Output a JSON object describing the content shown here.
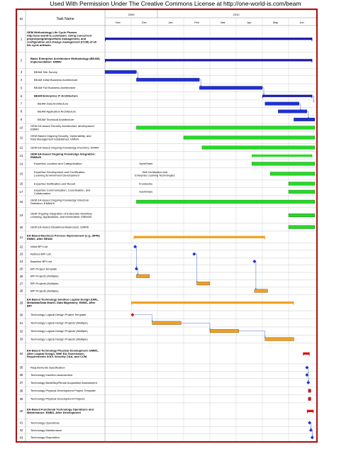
{
  "header_note": "Used With Permission Under The Creative Commons License at http://one-world-is.com/beam",
  "table": {
    "id_header": "ID",
    "task_header": "Task Name",
    "years": [
      {
        "label": "2009",
        "start": 0,
        "span": 2
      },
      {
        "label": "2010",
        "start": 2,
        "span": 6
      }
    ],
    "months": [
      "Nov",
      "Dec",
      "Jan",
      "Feb",
      "Mar",
      "Apr",
      "May",
      "Jun"
    ]
  },
  "colors": {
    "summary": "#1a1aa8",
    "blue": "#1f2fd8",
    "green": "#22dd22",
    "orange": "#f0a020",
    "red": "#e01010",
    "border": "#a11111",
    "grid": "#c8c8c8",
    "link": "#2244cc"
  },
  "rows": [
    {
      "id": "1",
      "name": "GEM Methodology Life Cycle Phases http://one-world-is.com/beam. Using concurrent project/program/portfolio management, and configuration and change management (CCM) of all life cycle artifacts.",
      "bold": true,
      "indent": 0,
      "h": 3.6,
      "bar": {
        "type": "summary",
        "color": "summary",
        "start": 0.0,
        "end": 7.9
      }
    },
    {
      "id": "2",
      "name": "Basic Enterprise Architecture Methodology (BEAM) Implementation: EMM3",
      "bold": true,
      "indent": 1,
      "h": 2.2,
      "bar": {
        "type": "summary",
        "color": "summary",
        "start": 0.0,
        "end": 7.9
      }
    },
    {
      "id": "3",
      "name": "BEAM Site Survey",
      "bold": false,
      "indent": 2,
      "h": 1,
      "bar": {
        "type": "task",
        "color": "blue",
        "start": 0.0,
        "end": 1.2
      }
    },
    {
      "id": "4",
      "name": "BEAM Initial Business Architecture",
      "bold": false,
      "indent": 2,
      "h": 1.1,
      "bar": {
        "type": "task",
        "color": "blue",
        "start": 1.2,
        "end": 3.6
      }
    },
    {
      "id": "5",
      "name": "BEAM Full Business Architecture",
      "bold": false,
      "indent": 2,
      "h": 1.1,
      "bar": {
        "type": "task",
        "color": "blue",
        "start": 3.6,
        "end": 6.0
      }
    },
    {
      "id": "6",
      "name": "BEAM Enterprise IT Architecture",
      "bold": true,
      "indent": 2,
      "h": 1.1,
      "bar": {
        "type": "summary",
        "color": "summary",
        "start": 6.0,
        "end": 7.9
      }
    },
    {
      "id": "7",
      "name": "BEAM Data Architecture",
      "bold": false,
      "indent": 3,
      "h": 1,
      "bar": {
        "type": "task",
        "color": "blue",
        "start": 6.1,
        "end": 7.4
      }
    },
    {
      "id": "8",
      "name": "BEAM Application Architecture",
      "bold": false,
      "indent": 3,
      "h": 1.1,
      "bar": {
        "type": "task",
        "color": "blue",
        "start": 6.6,
        "end": 7.7
      }
    },
    {
      "id": "9",
      "name": "BEAM Technical Architecture",
      "bold": false,
      "indent": 3,
      "h": 1.1,
      "bar": {
        "type": "task",
        "color": "blue",
        "start": 7.2,
        "end": 8.0
      }
    },
    {
      "id": "10",
      "name": "GEM EA-based Security Architecture development: EMM4",
      "bold": false,
      "indent": 1,
      "h": 1.1,
      "bar": {
        "type": "task",
        "color": "green",
        "start": 1.2,
        "end": 8.0
      }
    },
    {
      "id": "11",
      "name": "GEM Based Ongoing Security, Vulnerability, and Risk Management Established: EMM4",
      "bold": false,
      "indent": 1,
      "h": 1.6,
      "bar": {
        "type": "task",
        "color": "green",
        "start": 3.0,
        "end": 8.0
      }
    },
    {
      "id": "12",
      "name": "GEM EA-based Ongoing Knowledge Inventory: EMM4",
      "bold": false,
      "indent": 1,
      "h": 1.1,
      "bar": {
        "type": "task",
        "color": "green",
        "start": 3.7,
        "end": 8.0
      }
    },
    {
      "id": "13",
      "name": "GEM EA-based Ongoing Knowledge Integration: EMM4/5",
      "bold": true,
      "indent": 1,
      "h": 1.1,
      "bar": {
        "type": "summary",
        "color": "green",
        "start": 5.6,
        "end": 7.9
      }
    },
    {
      "id": "14",
      "name": "Expertise Location and Categorization",
      "bold": false,
      "indent": 2,
      "h": 1.1,
      "note": "XpertShare",
      "bar": {
        "type": "task",
        "color": "green",
        "start": 5.6,
        "end": 8.0
      }
    },
    {
      "id": "15",
      "name": "Expertise Development and Certification, Learning Environment Development",
      "bold": false,
      "indent": 2,
      "h": 1.6,
      "note": "Skill Certification and Enterprise Learning Technologies",
      "bar": {
        "type": "task",
        "color": "green",
        "start": 6.3,
        "end": 8.0
      }
    },
    {
      "id": "16",
      "name": "Expertise Notification and Recall",
      "bold": false,
      "indent": 2,
      "h": 1.1,
      "note": "Frontworks",
      "bar": {
        "type": "task",
        "color": "green",
        "start": 7.0,
        "end": 8.0
      }
    },
    {
      "id": "17",
      "name": "Expertise Communication, Coordination, and Collaboration",
      "bold": false,
      "indent": 2,
      "h": 1.1,
      "note": "XpertShare",
      "bar": {
        "type": "task",
        "color": "green",
        "start": 7.0,
        "end": 8.0
      }
    },
    {
      "id": "18",
      "name": "GEM EA-based Ongoing Knowledge Structure Definition: EMM4/5",
      "bold": false,
      "indent": 1,
      "h": 1.6,
      "bar": {
        "type": "task",
        "color": "green",
        "start": 1.2,
        "end": 8.0
      }
    },
    {
      "id": "19",
      "name": "GEM Ongoing Integration of Enterprise Workflow, Learning, Applications, and Information: EMM4/5",
      "bold": false,
      "indent": 1,
      "h": 2.1,
      "bar": {
        "type": "task",
        "color": "green",
        "start": 7.0,
        "end": 8.0
      }
    },
    {
      "id": "20",
      "name": "GEM EA-based Situational Awareness: EMM5",
      "bold": false,
      "indent": 1,
      "h": 1.1,
      "bar": {
        "type": "task",
        "color": "green",
        "start": 7.0,
        "end": 8.0
      }
    },
    {
      "id": "21",
      "name": "EA-Based Business Process Improvement (e.g., BPR): EMM2, After BEAM",
      "bold": true,
      "indent": 0,
      "h": 1.6,
      "bar": {
        "type": "summary",
        "color": "orange",
        "start": 1.1,
        "end": 6.1
      }
    },
    {
      "id": "22",
      "name": "Initial BPI List",
      "bold": false,
      "indent": 1,
      "h": 1,
      "bar": {
        "type": "milestone",
        "color": "blue",
        "start": 1.15,
        "end": 1.15
      }
    },
    {
      "id": "23",
      "name": "Refined BPI List",
      "bold": false,
      "indent": 1,
      "h": 1,
      "bar": {
        "type": "milestone",
        "color": "blue",
        "start": 3.4,
        "end": 3.4
      }
    },
    {
      "id": "24",
      "name": "Baseline BPI List",
      "bold": false,
      "indent": 1,
      "h": 1,
      "bar": {
        "type": "milestone",
        "color": "blue",
        "start": 5.7,
        "end": 5.7
      }
    },
    {
      "id": "25",
      "name": "BPI Project Template",
      "bold": false,
      "indent": 1,
      "h": 1,
      "bar": {
        "type": "milestone",
        "color": "blue",
        "start": 1.2,
        "end": 1.2
      }
    },
    {
      "id": "26",
      "name": "BPI Projects (Multiple)",
      "bold": false,
      "indent": 1,
      "h": 1,
      "bar": {
        "type": "task",
        "color": "orange",
        "start": 1.2,
        "end": 1.7
      }
    },
    {
      "id": "27",
      "name": "BPI Projects (Multiple)",
      "bold": false,
      "indent": 1,
      "h": 1,
      "bar": {
        "type": "task",
        "color": "orange",
        "start": 3.5,
        "end": 4.0
      }
    },
    {
      "id": "28",
      "name": "BPI Projects (Multiple)",
      "bold": false,
      "indent": 1,
      "h": 1,
      "bar": {
        "type": "task",
        "color": "orange",
        "start": 5.7,
        "end": 6.2
      }
    },
    {
      "id": "29",
      "name": "EA-Based Technology Solution Logical Design (UML, Metadata/Data Model, Data Migration): EMM1, After BPI",
      "bold": true,
      "indent": 0,
      "h": 2.2,
      "bar": {
        "type": "summary",
        "color": "orange",
        "start": 1.0,
        "end": 7.2
      }
    },
    {
      "id": "30",
      "name": "Technology Logical Design Project Template",
      "bold": false,
      "indent": 1,
      "h": 1.1,
      "bar": {
        "type": "milestone",
        "color": "red",
        "start": 1.05,
        "end": 1.05
      }
    },
    {
      "id": "31",
      "name": "Technology Logical Design Projects (Multiple)",
      "bold": false,
      "indent": 1,
      "h": 1.1,
      "bar": {
        "type": "task",
        "color": "orange",
        "start": 1.8,
        "end": 2.9
      }
    },
    {
      "id": "32",
      "name": "Technology Logical Design Projects (Multiple)",
      "bold": false,
      "indent": 1,
      "h": 1.1,
      "bar": {
        "type": "task",
        "color": "orange",
        "start": 4.0,
        "end": 5.1
      }
    },
    {
      "id": "33",
      "name": "Technology Logical Design Projects (Multiple)",
      "bold": false,
      "indent": 1,
      "h": 1.1,
      "bar": {
        "type": "task",
        "color": "orange",
        "start": 6.1,
        "end": 7.2
      }
    },
    {
      "id": "34",
      "name": "EA-Based Technology Physical Development: EMM1, After Logical Design. With EA Governance, Requirements IV&V, Security C&A, and CCM.",
      "bold": true,
      "indent": 0,
      "h": 2.8,
      "bar": {
        "type": "summary",
        "color": "red",
        "start": 7.55,
        "end": 7.8
      }
    },
    {
      "id": "35",
      "name": "Requirements Specification",
      "bold": false,
      "indent": 1,
      "h": 1,
      "bar": {
        "type": "milestone",
        "color": "blue",
        "start": 7.7,
        "end": 7.7
      }
    },
    {
      "id": "36",
      "name": "Technology Insertion Assessment",
      "bold": false,
      "indent": 1,
      "h": 1,
      "bar": {
        "type": "milestone",
        "color": "blue",
        "start": 7.7,
        "end": 7.7
      }
    },
    {
      "id": "37",
      "name": "Technology Build/Buy/Reuse Acquisition Assessment",
      "bold": false,
      "indent": 1,
      "h": 1.1,
      "bar": {
        "type": "milestone",
        "color": "blue",
        "start": 7.75,
        "end": 7.75
      }
    },
    {
      "id": "38",
      "name": "Technology Physical Development Project Template",
      "bold": false,
      "indent": 1,
      "h": 1.1,
      "bar": {
        "type": "task",
        "color": "red",
        "start": 7.75,
        "end": 7.85
      }
    },
    {
      "id": "39",
      "name": "Technology Physical Development Projects",
      "bold": false,
      "indent": 1,
      "h": 1.1,
      "bar": {
        "type": "task",
        "color": "red",
        "start": 7.75,
        "end": 7.85
      }
    },
    {
      "id": "40",
      "name": "EA-Based Functional Technology Operations and Maintenance: EMM1, After Development",
      "bold": true,
      "indent": 0,
      "h": 2.2,
      "bar": {
        "type": "summary",
        "color": "red",
        "start": 7.7,
        "end": 7.95
      }
    },
    {
      "id": "41",
      "name": "Technology Operations",
      "bold": false,
      "indent": 1,
      "h": 1,
      "bar": {
        "type": "milestone",
        "color": "blue",
        "start": 7.8,
        "end": 7.8
      }
    },
    {
      "id": "42",
      "name": "Technology Maintenance",
      "bold": false,
      "indent": 1,
      "h": 1,
      "bar": {
        "type": "milestone",
        "color": "blue",
        "start": 7.85,
        "end": 7.85
      }
    },
    {
      "id": "43",
      "name": "Technology Disposition",
      "bold": false,
      "indent": 1,
      "h": 1,
      "bar": {
        "type": "milestone",
        "color": "blue",
        "start": 7.9,
        "end": 7.9
      }
    }
  ],
  "links": [
    [
      "3",
      "4"
    ],
    [
      "4",
      "5"
    ],
    [
      "5",
      "6"
    ],
    [
      "6",
      "7"
    ],
    [
      "7",
      "8"
    ],
    [
      "8",
      "9"
    ],
    [
      "22",
      "25"
    ],
    [
      "25",
      "26"
    ],
    [
      "23",
      "27"
    ],
    [
      "24",
      "28"
    ],
    [
      "30",
      "31"
    ],
    [
      "31",
      "32"
    ],
    [
      "32",
      "33"
    ],
    [
      "35",
      "36"
    ],
    [
      "36",
      "37"
    ],
    [
      "41",
      "42"
    ],
    [
      "42",
      "43"
    ]
  ]
}
